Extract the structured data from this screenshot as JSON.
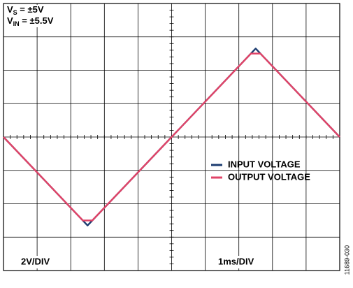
{
  "chart_data": {
    "type": "line",
    "annotations": [
      {
        "main": "V",
        "sub": "S",
        "text": " = ±5V"
      },
      {
        "main": "V",
        "sub": "IN",
        "text": " = ±5.5V"
      }
    ],
    "vertical_scale": "2V/DIV",
    "horizontal_scale": "1ms/DIV",
    "figure_id": "11689-030",
    "xlim": [
      0,
      10
    ],
    "ylim": [
      -8,
      8
    ],
    "xticks": [
      0,
      1,
      2,
      3,
      4,
      5,
      6,
      7,
      8,
      9,
      10
    ],
    "yticks": [
      -8,
      -6,
      -4,
      -2,
      0,
      2,
      4,
      6,
      8
    ],
    "grid": true,
    "legend": "right",
    "series": [
      {
        "name": "INPUT VOLTAGE",
        "color": "#1c3c70",
        "x": [
          0,
          2.5,
          5,
          7.5,
          10
        ],
        "values": [
          0,
          -5.3,
          0,
          5.3,
          0
        ]
      },
      {
        "name": "OUTPUT VOLTAGE",
        "color": "#e04468",
        "x": [
          0,
          2.36,
          2.64,
          5,
          7.36,
          7.64,
          10
        ],
        "values": [
          0,
          -5.0,
          -5.0,
          0,
          5.0,
          5.0,
          0
        ]
      }
    ]
  }
}
